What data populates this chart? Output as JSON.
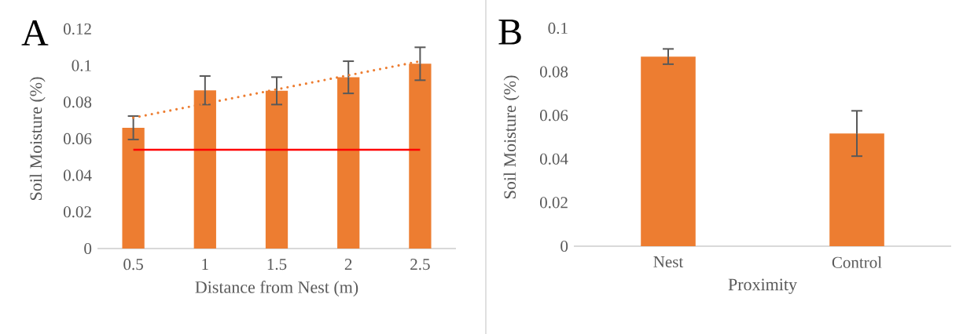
{
  "chart_data": [
    {
      "type": "bar",
      "annotations": [
        "A"
      ],
      "xlabel": "Distance from Nest (m)",
      "ylabel": "Soil Moisture (%)",
      "categories": [
        "0.5",
        "1",
        "1.5",
        "2",
        "2.5"
      ],
      "ylim": [
        0,
        0.12
      ],
      "yticks": [
        0,
        0.02,
        0.04,
        0.06,
        0.08,
        0.1,
        0.12
      ],
      "series": [
        {
          "color": "#ed7d31",
          "values": [
            0.066,
            0.0865,
            0.0862,
            0.0936,
            0.101
          ],
          "errors": [
            0.0064,
            0.0078,
            0.0075,
            0.0088,
            0.009
          ]
        },
        {
          "type": "line",
          "color": "#ed7d31",
          "line_style": "dotted",
          "values": [
            0.0715,
            0.0792,
            0.087,
            0.0947,
            0.1024
          ]
        },
        {
          "type": "line",
          "color": "#ff0000",
          "line_style": "solid",
          "values": [
            0.054,
            0.054,
            0.054,
            0.054,
            0.054
          ]
        }
      ]
    },
    {
      "type": "bar",
      "annotations": [
        "B"
      ],
      "xlabel": "Proximity",
      "ylabel": "Soil Moisture (%)",
      "categories": [
        "Nest",
        "Control"
      ],
      "ylim": [
        0,
        0.1
      ],
      "yticks": [
        0,
        0.02,
        0.04,
        0.06,
        0.08,
        0.1
      ],
      "series": [
        {
          "color": "#ed7d31",
          "values": [
            0.087,
            0.0517
          ],
          "errors": [
            0.0035,
            0.0104
          ]
        }
      ]
    }
  ]
}
